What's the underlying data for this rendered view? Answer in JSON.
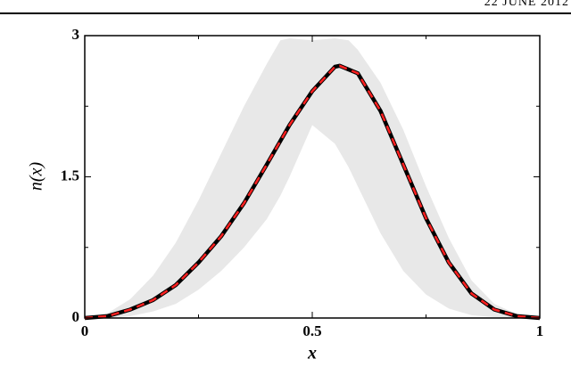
{
  "header_text": "22 JUNE 2012",
  "chart_data": {
    "type": "line",
    "xlabel": "x",
    "ylabel": "n(x)",
    "xlim": [
      0,
      1
    ],
    "ylim": [
      0,
      3
    ],
    "xticks": [
      0,
      0.5,
      1
    ],
    "yticks": [
      0,
      1.5,
      3
    ],
    "xminor": [
      0.25,
      0.75
    ],
    "yminor": [
      0.75,
      2.25
    ],
    "band": {
      "color": "#e8e8e8",
      "x": [
        0,
        0.05,
        0.1,
        0.15,
        0.2,
        0.25,
        0.3,
        0.35,
        0.4,
        0.43,
        0.45,
        0.5,
        0.55,
        0.58,
        0.6,
        0.65,
        0.7,
        0.75,
        0.8,
        0.85,
        0.9,
        0.95,
        1
      ],
      "upper": [
        0,
        0.05,
        0.2,
        0.45,
        0.8,
        1.25,
        1.75,
        2.25,
        2.7,
        2.95,
        2.97,
        2.95,
        2.97,
        2.95,
        2.85,
        2.5,
        2.0,
        1.4,
        0.85,
        0.4,
        0.15,
        0.04,
        0
      ],
      "lower": [
        0,
        0,
        0.02,
        0.07,
        0.15,
        0.3,
        0.5,
        0.75,
        1.05,
        1.3,
        1.5,
        2.05,
        1.85,
        1.6,
        1.4,
        0.9,
        0.5,
        0.25,
        0.1,
        0.03,
        0.01,
        0,
        0
      ]
    },
    "x": [
      0,
      0.05,
      0.1,
      0.15,
      0.2,
      0.25,
      0.3,
      0.35,
      0.4,
      0.45,
      0.5,
      0.55,
      0.56,
      0.6,
      0.65,
      0.7,
      0.75,
      0.8,
      0.85,
      0.9,
      0.95,
      1
    ],
    "series": [
      {
        "color": "#000000",
        "dash": false,
        "values": [
          0,
          0.02,
          0.09,
          0.19,
          0.35,
          0.59,
          0.87,
          1.22,
          1.63,
          2.05,
          2.41,
          2.67,
          2.68,
          2.6,
          2.2,
          1.63,
          1.06,
          0.59,
          0.26,
          0.09,
          0.02,
          0
        ]
      },
      {
        "color": "#ff2020",
        "dash": true,
        "values": [
          0,
          0.02,
          0.09,
          0.19,
          0.35,
          0.59,
          0.87,
          1.22,
          1.63,
          2.05,
          2.41,
          2.67,
          2.68,
          2.6,
          2.2,
          1.63,
          1.06,
          0.59,
          0.26,
          0.09,
          0.02,
          0
        ]
      }
    ]
  }
}
